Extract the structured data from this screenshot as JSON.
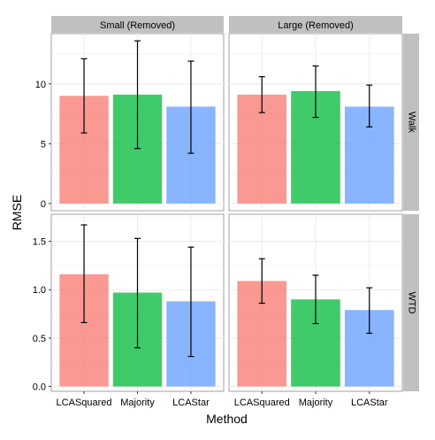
{
  "chart_data": {
    "type": "bar",
    "xlabel": "Method",
    "ylabel": "RMSE",
    "categories": [
      "LCASquared",
      "Majority",
      "LCAStar"
    ],
    "colors": {
      "LCASquared": "#F8766D",
      "Majority": "#00BA38",
      "LCAStar": "#619CFF"
    },
    "bar_alpha": 0.75,
    "panel_background": "#ffffff",
    "grid_color": "#ebebeb",
    "strip_background": "#c0c0c0",
    "grid": true,
    "legend": "none",
    "col_facets": [
      "Small (Removed)",
      "Large (Removed)"
    ],
    "row_facets": [
      {
        "label": "Walk",
        "ylim": [
          -0.6,
          14.2
        ],
        "ticks": [
          0,
          5,
          10
        ],
        "tick_labels": [
          "0",
          "5",
          "10"
        ]
      },
      {
        "label": "WTD",
        "ylim": [
          -0.05,
          1.78
        ],
        "ticks": [
          0.0,
          0.5,
          1.0,
          1.5
        ],
        "tick_labels": [
          "0.0",
          "0.5",
          "1.0",
          "1.5"
        ]
      }
    ],
    "panels": [
      {
        "col": "Small (Removed)",
        "row": "Walk",
        "values": [
          9.0,
          9.1,
          8.1
        ],
        "error_low": [
          5.9,
          4.6,
          4.2
        ],
        "error_high": [
          12.1,
          13.6,
          11.9
        ]
      },
      {
        "col": "Large (Removed)",
        "row": "Walk",
        "values": [
          9.1,
          9.4,
          8.1
        ],
        "error_low": [
          7.6,
          7.2,
          6.4
        ],
        "error_high": [
          10.6,
          11.5,
          9.9
        ]
      },
      {
        "col": "Small (Removed)",
        "row": "WTD",
        "values": [
          1.16,
          0.97,
          0.88
        ],
        "error_low": [
          0.66,
          0.4,
          0.31
        ],
        "error_high": [
          1.67,
          1.53,
          1.44
        ]
      },
      {
        "col": "Large (Removed)",
        "row": "WTD",
        "values": [
          1.09,
          0.9,
          0.79
        ],
        "error_low": [
          0.86,
          0.65,
          0.55
        ],
        "error_high": [
          1.32,
          1.15,
          1.02
        ]
      }
    ]
  }
}
